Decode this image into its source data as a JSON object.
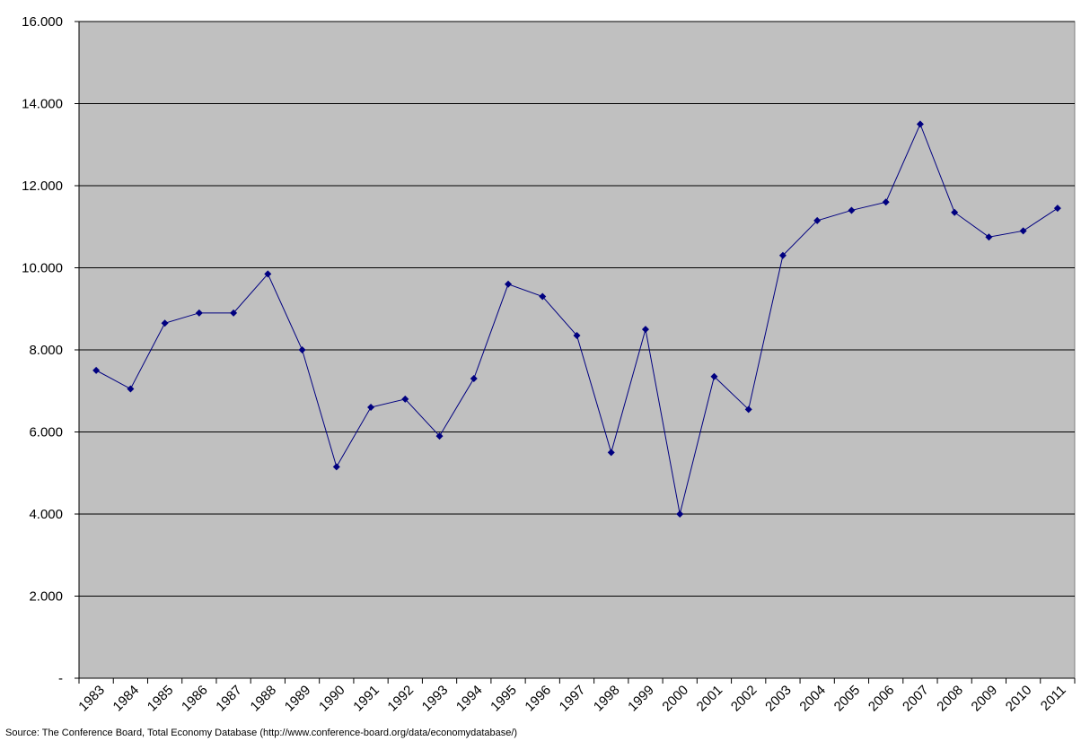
{
  "chart_data": {
    "type": "line",
    "source": "Source: The Conference Board, Total Economy Database (http://www.conference-board.org/data/economydatabase/)",
    "categories": [
      "1983",
      "1984",
      "1985",
      "1986",
      "1987",
      "1988",
      "1989",
      "1990",
      "1991",
      "1992",
      "1993",
      "1994",
      "1995",
      "1996",
      "1997",
      "1998",
      "1999",
      "2000",
      "2001",
      "2002",
      "2003",
      "2004",
      "2005",
      "2006",
      "2007",
      "2008",
      "2009",
      "2010",
      "2011"
    ],
    "series": [
      {
        "color": "#000080",
        "values": [
          7500,
          7050,
          8650,
          8900,
          8900,
          9850,
          8000,
          5150,
          6600,
          6800,
          5900,
          7300,
          9600,
          9300,
          8350,
          5500,
          8500,
          4000,
          7350,
          6550,
          10300,
          11150,
          11400,
          11600,
          13500,
          11350,
          10750,
          10900,
          11450
        ]
      }
    ],
    "ylim": [
      0,
      16000
    ],
    "yticks": [
      {
        "value": 0,
        "label": "-"
      },
      {
        "value": 2000,
        "label": "2.000"
      },
      {
        "value": 4000,
        "label": "4.000"
      },
      {
        "value": 6000,
        "label": "6.000"
      },
      {
        "value": 8000,
        "label": "8.000"
      },
      {
        "value": 10000,
        "label": "10.000"
      },
      {
        "value": 12000,
        "label": "12.000"
      },
      {
        "value": 14000,
        "label": "14.000"
      },
      {
        "value": 16000,
        "label": "16.000"
      }
    ],
    "grid": true,
    "plot_background": "#c0c0c0"
  }
}
